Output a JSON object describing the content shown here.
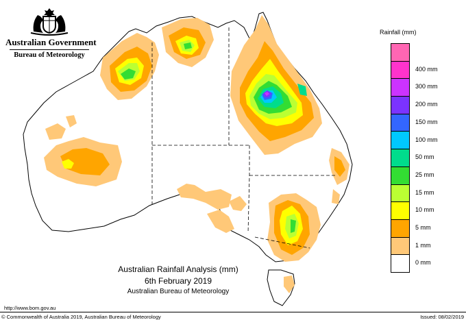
{
  "header": {
    "government": "Australian Government",
    "bureau": "Bureau of Meteorology",
    "crest_icon": "coat-of-arms-icon"
  },
  "legend": {
    "title": "Rainfall (mm)",
    "bands": [
      {
        "label": "",
        "color": "#ff66b3"
      },
      {
        "label": "400 mm",
        "color": "#ff33cc"
      },
      {
        "label": "300 mm",
        "color": "#cc33ff"
      },
      {
        "label": "200 mm",
        "color": "#7b33ff"
      },
      {
        "label": "150 mm",
        "color": "#3366ff"
      },
      {
        "label": "100 mm",
        "color": "#00c8ff"
      },
      {
        "label": "50 mm",
        "color": "#00dc8c"
      },
      {
        "label": "25 mm",
        "color": "#33dd33"
      },
      {
        "label": "15 mm",
        "color": "#bbff33"
      },
      {
        "label": "10 mm",
        "color": "#ffff00"
      },
      {
        "label": "5 mm",
        "color": "#ffa500"
      },
      {
        "label": "1 mm",
        "color": "#ffc878"
      },
      {
        "label": "0 mm",
        "color": "#ffffff"
      }
    ]
  },
  "caption": {
    "line1": "Australian Rainfall Analysis (mm)",
    "line2": "6th February 2019",
    "line3": "Australian Bureau of Meteorology"
  },
  "footer": {
    "url": "http://www.bom.gov.au",
    "copyright": "© Commonwealth of Australia 2019, Australian Bureau of Meteorology",
    "issued": "Issued: 08/02/2019"
  }
}
